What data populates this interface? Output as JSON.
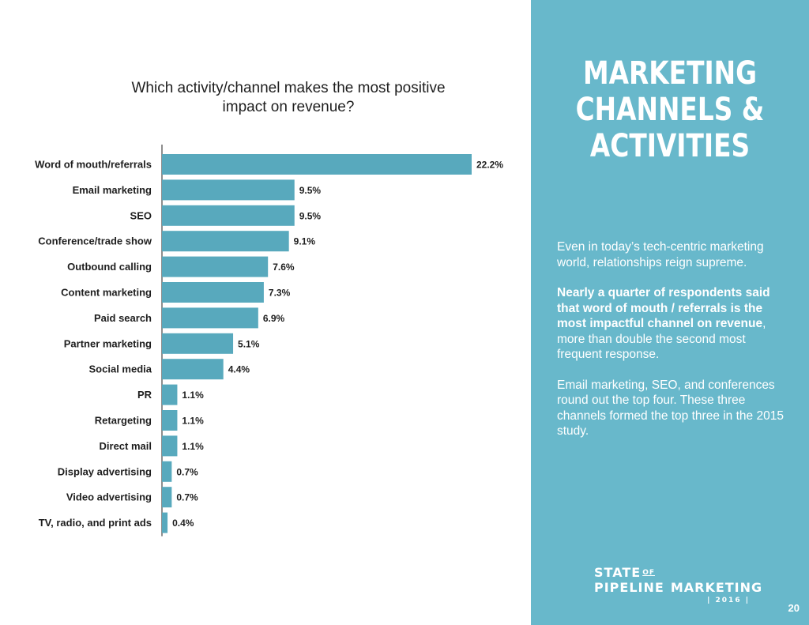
{
  "chart_data": {
    "type": "bar",
    "orientation": "horizontal",
    "title": "Which activity/channel makes the most positive impact on revenue?",
    "title_lines": [
      "Which activity/channel makes the most positive",
      "impact on revenue?"
    ],
    "categories": [
      "Word of mouth/referrals",
      "Email marketing",
      "SEO",
      "Conference/trade show",
      "Outbound calling",
      "Content marketing",
      "Paid search",
      "Partner marketing",
      "Social media",
      "PR",
      "Retargeting",
      "Direct mail",
      "Display advertising",
      "Video advertising",
      "TV, radio, and print ads"
    ],
    "values": [
      22.2,
      9.5,
      9.5,
      9.1,
      7.6,
      7.3,
      6.9,
      5.1,
      4.4,
      1.1,
      1.1,
      1.1,
      0.7,
      0.7,
      0.4
    ],
    "value_labels": [
      "22.2%",
      "9.5%",
      "9.5%",
      "9.1%",
      "7.6%",
      "7.3%",
      "6.9%",
      "5.1%",
      "4.4%",
      "1.1%",
      "1.1%",
      "1.1%",
      "0.7%",
      "0.7%",
      "0.4%"
    ],
    "value_suffix": "%",
    "bar_color": "#58a9bd",
    "grid": false,
    "legend": "none"
  },
  "side_panel": {
    "background": "#68b8cb",
    "heading_lines": [
      "MARKETING",
      "CHANNELS &",
      "ACTIVITIES"
    ],
    "paragraph1": "Even in today’s tech-centric marketing world, relationships reign supreme.",
    "paragraph2_bold": "Nearly a quarter of respondents said that word of mouth / referrals is the most impactful channel on revenue",
    "paragraph2_rest": ", more than double the second most frequent response.",
    "paragraph3": "Email marketing, SEO, and conferences round out the top four. These three channels formed the top three in the 2015 study."
  },
  "logo": {
    "line1": "STATE",
    "of": "OF",
    "line2a": "PIPELINE",
    "line2b": "MARKETING",
    "year": "| 2016 |",
    "icon": "funnel-icon"
  },
  "page_number": "20"
}
